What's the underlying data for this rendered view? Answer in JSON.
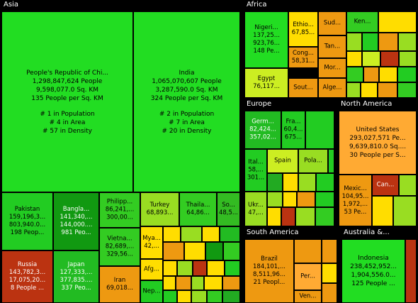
{
  "chart_data": {
    "type": "treemap",
    "colors": {
      "green_bright": "#22dd22",
      "green": "#33bb33",
      "green_dark": "#118811",
      "lime": "#99dd22",
      "yellow": "#ffdd00",
      "orange": "#ee9911",
      "orange_light": "#ffaa33",
      "red": "#bb3311",
      "region_bg": "#000000",
      "title_text": "#ffffff"
    },
    "regions": [
      {
        "name": "Asia",
        "tiles": [
          {
            "lines": [
              "People's Republic of Chi...",
              "1,298,847,624 People",
              "9,598,077.0 Sq. KM",
              "135 People per Sq. KM",
              "",
              "# 1 in Population",
              "# 4 in Area",
              "# 57 in Density"
            ],
            "color": "#22dd22",
            "big": true
          },
          {
            "lines": [
              "India",
              "1,065,070,607 People",
              "3,287,590.0 Sq. KM",
              "324 People per Sq. KM",
              "",
              "# 2 in Population",
              "# 7 in Area",
              "# 20 in Density"
            ],
            "color": "#22dd22",
            "big": true
          },
          {
            "lines": [
              "Pakistan",
              "159,196,3...",
              "803,940.0...",
              "198 Peop..."
            ],
            "color": "#22cc22"
          },
          {
            "lines": [
              "Bangla...",
              "141,340,...",
              "144,000....",
              "981 Peo..."
            ],
            "color": "#119911",
            "light": true
          },
          {
            "lines": [
              "Russia",
              "143,782,3...",
              "17,075,20...",
              "8 People ..."
            ],
            "color": "#bb3311",
            "light": true
          },
          {
            "lines": [
              "Japan",
              "127,333,...",
              "377,835....",
              "337 Peo..."
            ],
            "color": "#22bb22",
            "light": true
          },
          {
            "lines": [
              "Philipp...",
              "86,241,...",
              "300,00..."
            ],
            "color": "#33cc22"
          },
          {
            "lines": [
              "Vietna...",
              "82,689,...",
              "329,56..."
            ],
            "color": "#33cc22"
          },
          {
            "lines": [
              "Iran",
              "69,018..."
            ],
            "color": "#ee9911"
          },
          {
            "lines": [
              "Turkey",
              "68,893..."
            ],
            "color": "#99dd22"
          },
          {
            "lines": [
              "Thaila...",
              "64,86..."
            ],
            "color": "#33cc22"
          },
          {
            "lines": [
              "So...",
              "48,5..."
            ],
            "color": "#33bb22"
          },
          {
            "lines": [
              "Mya...",
              "42,..."
            ],
            "color": "#ffdd00"
          },
          {
            "lines": [
              "Afg..."
            ],
            "color": "#ffdd00"
          },
          {
            "lines": [
              "Nep..."
            ],
            "color": "#22cc22"
          }
        ]
      },
      {
        "name": "Africa",
        "tiles": [
          {
            "lines": [
              "Nigeri...",
              "137,25...",
              "923,76...",
              "148 Pe..."
            ],
            "color": "#22dd22"
          },
          {
            "lines": [
              "Ethio...",
              "67,85..."
            ],
            "color": "#ffdd00"
          },
          {
            "lines": [
              "Sud..."
            ],
            "color": "#ee9911"
          },
          {
            "lines": [
              "Ken..."
            ],
            "color": "#33cc22"
          },
          {
            "lines": [
              "Cong...",
              "58,31..."
            ],
            "color": "#ee9911"
          },
          {
            "lines": [
              "Tan..."
            ],
            "color": "#ee9911"
          },
          {
            "lines": [
              "Egypt",
              "76,117..."
            ],
            "color": "#ccee22"
          },
          {
            "lines": [
              "Mor..."
            ],
            "color": "#ee9911"
          },
          {
            "lines": [
              "Sout..."
            ],
            "color": "#ee9911"
          },
          {
            "lines": [
              "Alge..."
            ],
            "color": "#ee9911"
          }
        ]
      },
      {
        "name": "Europe",
        "tiles": [
          {
            "lines": [
              "Germ...",
              "82,424...",
              "357,02..."
            ],
            "color": "#22bb22",
            "light": true
          },
          {
            "lines": [
              "Fra...",
              "60,4...",
              "675..."
            ],
            "color": "#22cc22"
          },
          {
            "lines": [
              "Ital...",
              "58,...",
              "301..."
            ],
            "color": "#22cc22"
          },
          {
            "lines": [
              "Spain"
            ],
            "color": "#ccee22"
          },
          {
            "lines": [
              "Pola..."
            ],
            "color": "#99dd22"
          },
          {
            "lines": [
              "Ukr...",
              "47,..."
            ],
            "color": "#99dd22"
          }
        ]
      },
      {
        "name": "North America",
        "tiles": [
          {
            "lines": [
              "United States",
              "293,027,571 Pe...",
              "9,639,810.0 Sq....",
              "30 People per S..."
            ],
            "color": "#ffaa33",
            "big": true
          },
          {
            "lines": [
              "Mexic...",
              "104,95...",
              "1,972,...",
              "53 Pe..."
            ],
            "color": "#ee9911"
          },
          {
            "lines": [
              "Can..."
            ],
            "color": "#bb3311",
            "light": true
          }
        ]
      },
      {
        "name": "South America",
        "tiles": [
          {
            "lines": [
              "Brazil",
              "184,101,...",
              "8,511,96...",
              "21 Peopl..."
            ],
            "color": "#ee9911"
          },
          {
            "lines": [
              "Per..."
            ],
            "color": "#ffaa33"
          },
          {
            "lines": [
              "Ven..."
            ],
            "color": "#ee9911"
          }
        ]
      },
      {
        "name": "Australia &...",
        "tiles": [
          {
            "lines": [
              "Indonesia",
              "238,452,952...",
              "1,904,556.0...",
              "125 People ..."
            ],
            "color": "#22dd22",
            "big": true
          }
        ]
      }
    ]
  }
}
